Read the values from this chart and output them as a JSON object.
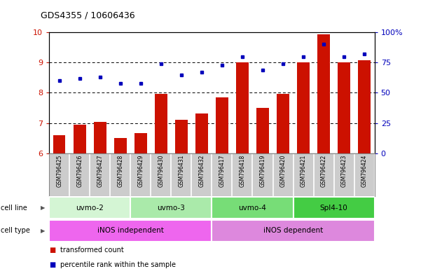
{
  "title": "GDS4355 / 10606436",
  "samples": [
    "GSM796425",
    "GSM796426",
    "GSM796427",
    "GSM796428",
    "GSM796429",
    "GSM796430",
    "GSM796431",
    "GSM796432",
    "GSM796417",
    "GSM796418",
    "GSM796419",
    "GSM796420",
    "GSM796421",
    "GSM796422",
    "GSM796423",
    "GSM796424"
  ],
  "transformed_count": [
    6.6,
    6.95,
    7.05,
    6.5,
    6.68,
    7.97,
    7.1,
    7.32,
    7.85,
    9.0,
    7.5,
    7.97,
    9.0,
    9.93,
    9.0,
    9.08
  ],
  "percentile_rank": [
    60,
    62,
    63,
    58,
    58,
    74,
    65,
    67,
    73,
    80,
    69,
    74,
    80,
    90,
    80,
    82
  ],
  "ylim_left": [
    6,
    10
  ],
  "ylim_right": [
    0,
    100
  ],
  "right_ticks": [
    0,
    25,
    50,
    75,
    100
  ],
  "right_tick_labels": [
    "0",
    "25",
    "50",
    "75",
    "100%"
  ],
  "left_ticks": [
    6,
    7,
    8,
    9,
    10
  ],
  "cell_lines": [
    {
      "label": "uvmo-2",
      "start": 0,
      "end": 3,
      "color": "#d4f5d4"
    },
    {
      "label": "uvmo-3",
      "start": 4,
      "end": 7,
      "color": "#aaeaaa"
    },
    {
      "label": "uvmo-4",
      "start": 8,
      "end": 11,
      "color": "#77dd77"
    },
    {
      "label": "Spl4-10",
      "start": 12,
      "end": 15,
      "color": "#44cc44"
    }
  ],
  "cell_types": [
    {
      "label": "iNOS independent",
      "start": 0,
      "end": 7,
      "color": "#ee66ee"
    },
    {
      "label": "iNOS dependent",
      "start": 8,
      "end": 15,
      "color": "#dd88dd"
    }
  ],
  "bar_color": "#cc1100",
  "dot_color": "#0000bb",
  "grid_color": "#000000",
  "axis_color_left": "#cc1100",
  "axis_color_right": "#0000bb",
  "sample_box_color": "#cccccc",
  "sample_box_border": "#888888",
  "legend_items": [
    {
      "label": "transformed count",
      "color": "#cc1100"
    },
    {
      "label": "percentile rank within the sample",
      "color": "#0000bb"
    }
  ]
}
